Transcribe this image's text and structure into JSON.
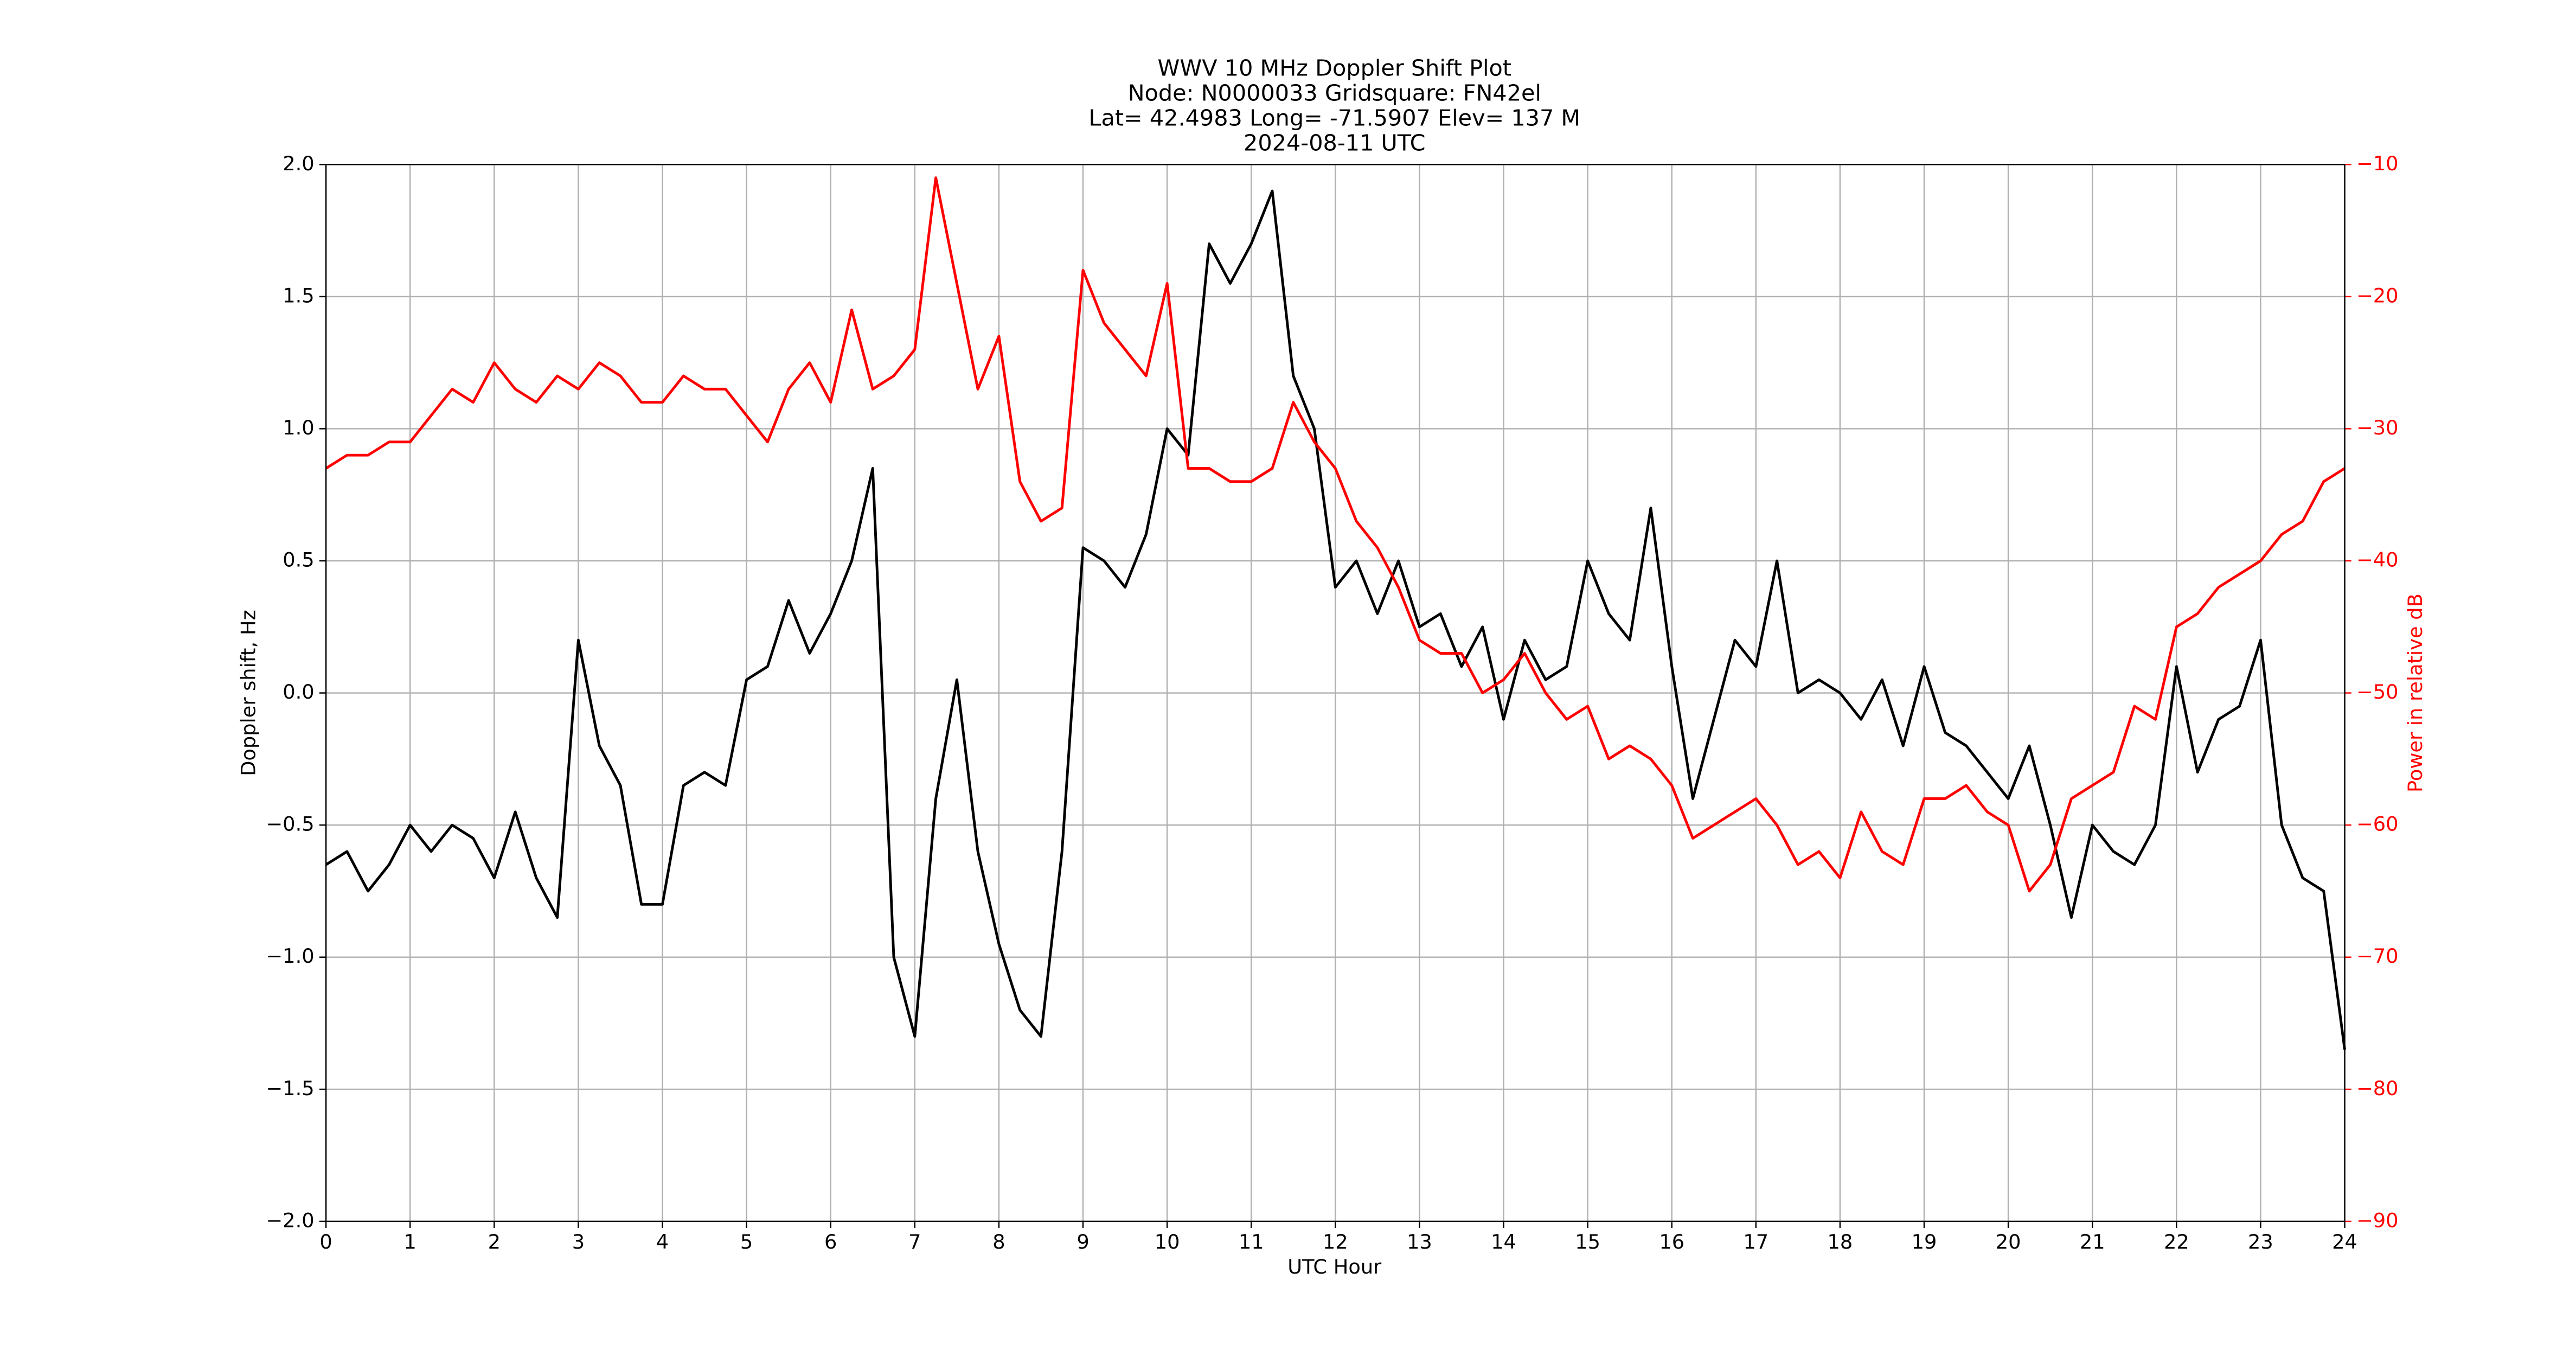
{
  "chart_data": {
    "type": "line",
    "title": "WWV 10 MHz Doppler Shift Plot",
    "subtitle": [
      "Node:  N0000033     Gridsquare:  FN42el",
      "Lat= 42.4983    Long= -71.5907    Elev= 137 M",
      "2024-08-11  UTC"
    ],
    "x_label": "UTC Hour",
    "y_label": "Doppler shift, Hz",
    "y2_label": "Power in relative dB",
    "y2_color": "#ff0000",
    "grid": true,
    "xlim": [
      0,
      24
    ],
    "xticks": [
      0,
      1,
      2,
      3,
      4,
      5,
      6,
      7,
      8,
      9,
      10,
      11,
      12,
      13,
      14,
      15,
      16,
      17,
      18,
      19,
      20,
      21,
      22,
      23,
      24
    ],
    "ylim": [
      -2,
      2
    ],
    "yticks": [
      {
        "value": -2,
        "label": "−2.0"
      },
      {
        "value": -1.5,
        "label": "−1.5"
      },
      {
        "value": -1,
        "label": "−1.0"
      },
      {
        "value": -0.5,
        "label": "−0.5"
      },
      {
        "value": 0,
        "label": "0.0"
      },
      0.5,
      {
        "value": 1,
        "label": "1.0"
      },
      1.5,
      {
        "value": 2,
        "label": "2.0"
      }
    ],
    "y2lim": [
      -90,
      -10
    ],
    "y2ticks": [
      {
        "value": -90,
        "label": "−90"
      },
      {
        "value": -80,
        "label": "−80"
      },
      {
        "value": -70,
        "label": "−70"
      },
      {
        "value": -60,
        "label": "−60"
      },
      {
        "value": -50,
        "label": "−50"
      },
      {
        "value": -40,
        "label": "−40"
      },
      {
        "value": -30,
        "label": "−30"
      },
      {
        "value": -20,
        "label": "−20"
      },
      {
        "value": -10,
        "label": "−10"
      }
    ],
    "x": [
      0,
      0.25,
      0.5,
      0.75,
      1,
      1.25,
      1.5,
      1.75,
      2,
      2.25,
      2.5,
      2.75,
      3,
      3.25,
      3.5,
      3.75,
      4,
      4.25,
      4.5,
      4.75,
      5,
      5.25,
      5.5,
      5.75,
      6,
      6.25,
      6.5,
      6.75,
      7,
      7.25,
      7.5,
      7.75,
      8,
      8.25,
      8.5,
      8.75,
      9,
      9.25,
      9.5,
      9.75,
      10,
      10.25,
      10.5,
      10.75,
      11,
      11.25,
      11.5,
      11.75,
      12,
      12.25,
      12.5,
      12.75,
      13,
      13.25,
      13.5,
      13.75,
      14,
      14.25,
      14.5,
      14.75,
      15,
      15.25,
      15.5,
      15.75,
      16,
      16.25,
      16.5,
      16.75,
      17,
      17.25,
      17.5,
      17.75,
      18,
      18.25,
      18.5,
      18.75,
      19,
      19.25,
      19.5,
      19.75,
      20,
      20.25,
      20.5,
      20.75,
      21,
      21.25,
      21.5,
      21.75,
      22,
      22.25,
      22.5,
      22.75,
      23,
      23.25,
      23.5,
      23.75,
      24
    ],
    "series": [
      {
        "color": "#000000",
        "axis": "y",
        "values": [
          -0.65,
          -0.6,
          -0.75,
          -0.65,
          -0.5,
          -0.6,
          -0.5,
          -0.55,
          -0.7,
          -0.45,
          -0.7,
          -0.85,
          0.2,
          -0.2,
          -0.35,
          -0.8,
          -0.8,
          -0.35,
          -0.3,
          -0.35,
          0.05,
          0.1,
          0.35,
          0.15,
          0.3,
          0.5,
          0.85,
          -1.0,
          -1.3,
          -0.4,
          0.05,
          -0.6,
          -0.95,
          -1.2,
          -1.3,
          -0.6,
          0.55,
          0.5,
          0.4,
          0.6,
          1.0,
          0.9,
          1.7,
          1.55,
          1.7,
          1.9,
          1.2,
          1.0,
          0.4,
          0.5,
          0.3,
          0.5,
          0.25,
          0.3,
          0.1,
          0.25,
          -0.1,
          0.2,
          0.05,
          0.1,
          0.5,
          0.3,
          0.2,
          0.7,
          0.1,
          -0.4,
          -0.1,
          0.2,
          0.1,
          0.5,
          0.0,
          0.05,
          0.0,
          -0.1,
          0.05,
          -0.2,
          0.1,
          -0.15,
          -0.2,
          -0.3,
          -0.4,
          -0.2,
          -0.5,
          -0.85,
          -0.5,
          -0.6,
          -0.65,
          -0.5,
          0.1,
          -0.3,
          -0.1,
          -0.05,
          0.2,
          -0.5,
          -0.7,
          -0.75,
          -1.35
        ]
      },
      {
        "color": "#ff0000",
        "axis": "y2",
        "values": [
          -33,
          -32,
          -32,
          -31,
          -31,
          -29,
          -27,
          -28,
          -25,
          -27,
          -28,
          -26,
          -27,
          -25,
          -26,
          -28,
          -28,
          -26,
          -27,
          -27,
          -29,
          -31,
          -27,
          -25,
          -28,
          -21,
          -27,
          -26,
          -24,
          -11,
          -19,
          -27,
          -23,
          -34,
          -37,
          -36,
          -18,
          -22,
          -24,
          -26,
          -19,
          -33,
          -33,
          -34,
          -34,
          -33,
          -28,
          -31,
          -33,
          -37,
          -39,
          -42,
          -46,
          -47,
          -47,
          -50,
          -49,
          -47,
          -50,
          -52,
          -51,
          -55,
          -54,
          -55,
          -57,
          -61,
          -60,
          -59,
          -58,
          -60,
          -63,
          -62,
          -64,
          -59,
          -62,
          -63,
          -58,
          -58,
          -57,
          -59,
          -60,
          -65,
          -63,
          -58,
          -57,
          -56,
          -51,
          -52,
          -45,
          -44,
          -42,
          -41,
          -40,
          -38,
          -37,
          -34,
          -33
        ]
      }
    ]
  }
}
